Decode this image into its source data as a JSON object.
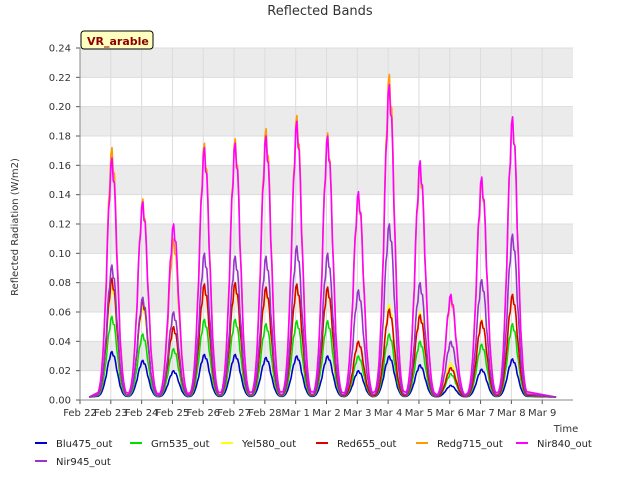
{
  "chart_data": {
    "type": "line",
    "title": "Reflected Bands",
    "xlabel": "Time",
    "ylabel": "Reflected Radiation (W/m2)",
    "ylim": [
      0,
      0.24
    ],
    "yticks": [
      "0.00",
      "0.02",
      "0.04",
      "0.06",
      "0.08",
      "0.10",
      "0.12",
      "0.14",
      "0.16",
      "0.18",
      "0.20",
      "0.22",
      "0.24"
    ],
    "xlim": [
      0,
      16
    ],
    "xticks": [
      "Feb 22",
      "Feb 23",
      "Feb 24",
      "Feb 25",
      "Feb 26",
      "Feb 27",
      "Feb 28",
      "Mar 1",
      "Mar 2",
      "Mar 3",
      "Mar 4",
      "Mar 5",
      "Mar 6",
      "Mar 7",
      "Mar 8",
      "Mar 9"
    ],
    "site_label": "VR_arable",
    "legend_position": "bottom",
    "days": [
      1,
      2,
      3,
      4,
      5,
      6,
      7,
      8,
      9,
      10,
      11,
      12,
      13,
      14,
      15
    ],
    "series": [
      {
        "name": "Blu475_out",
        "color": "#0000cc",
        "peaks": [
          0.033,
          0.027,
          0.02,
          0.031,
          0.031,
          0.029,
          0.03,
          0.03,
          0.02,
          0.03,
          0.024,
          0.01,
          0.021,
          0.028,
          0
        ]
      },
      {
        "name": "Grn535_out",
        "color": "#00dd00",
        "peaks": [
          0.057,
          0.045,
          0.035,
          0.055,
          0.055,
          0.052,
          0.054,
          0.054,
          0.03,
          0.045,
          0.04,
          0.018,
          0.038,
          0.052,
          0
        ]
      },
      {
        "name": "Yel580_out",
        "color": "#ffff00",
        "peaks": [
          0.08,
          0.065,
          0.05,
          0.078,
          0.078,
          0.075,
          0.078,
          0.076,
          0.04,
          0.065,
          0.06,
          0.025,
          0.055,
          0.072,
          0
        ]
      },
      {
        "name": "Red655_out",
        "color": "#dd0000",
        "peaks": [
          0.083,
          0.068,
          0.05,
          0.079,
          0.08,
          0.077,
          0.079,
          0.077,
          0.04,
          0.062,
          0.058,
          0.022,
          0.054,
          0.072,
          0
        ]
      },
      {
        "name": "Redg715_out",
        "color": "#ff9900",
        "peaks": [
          0.172,
          0.137,
          0.11,
          0.175,
          0.178,
          0.185,
          0.194,
          0.182,
          0.14,
          0.222,
          0.16,
          0.07,
          0.15,
          0.193,
          0
        ]
      },
      {
        "name": "Nir840_out",
        "color": "#ff00ff",
        "peaks": [
          0.165,
          0.135,
          0.12,
          0.172,
          0.175,
          0.18,
          0.19,
          0.18,
          0.142,
          0.215,
          0.163,
          0.072,
          0.152,
          0.193,
          0
        ]
      },
      {
        "name": "Nir945_out",
        "color": "#9933cc",
        "peaks": [
          0.092,
          0.07,
          0.06,
          0.1,
          0.098,
          0.098,
          0.105,
          0.1,
          0.075,
          0.12,
          0.08,
          0.04,
          0.082,
          0.113,
          0
        ]
      }
    ]
  }
}
